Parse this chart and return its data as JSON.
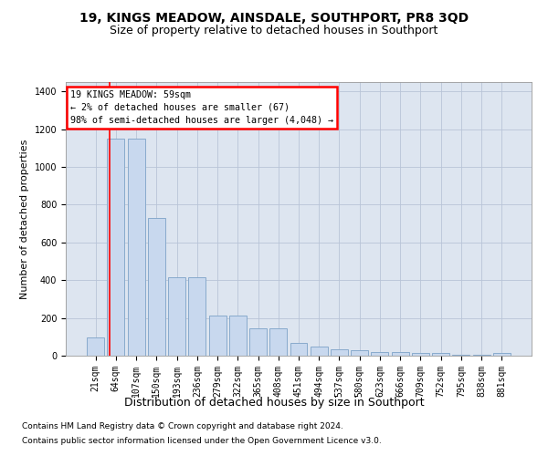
{
  "title1": "19, KINGS MEADOW, AINSDALE, SOUTHPORT, PR8 3QD",
  "title2": "Size of property relative to detached houses in Southport",
  "xlabel": "Distribution of detached houses by size in Southport",
  "ylabel": "Number of detached properties",
  "footnote1": "Contains HM Land Registry data © Crown copyright and database right 2024.",
  "footnote2": "Contains public sector information licensed under the Open Government Licence v3.0.",
  "categories": [
    "21sqm",
    "64sqm",
    "107sqm",
    "150sqm",
    "193sqm",
    "236sqm",
    "279sqm",
    "322sqm",
    "365sqm",
    "408sqm",
    "451sqm",
    "494sqm",
    "537sqm",
    "580sqm",
    "623sqm",
    "666sqm",
    "709sqm",
    "752sqm",
    "795sqm",
    "838sqm",
    "881sqm"
  ],
  "values": [
    97,
    1150,
    1150,
    730,
    415,
    415,
    215,
    215,
    145,
    145,
    70,
    50,
    35,
    30,
    20,
    17,
    15,
    14,
    5,
    5,
    14
  ],
  "bar_color": "#c8d8ee",
  "bar_edge_color": "#88aacc",
  "vline_x_index": 0.68,
  "ylim": [
    0,
    1450
  ],
  "yticks": [
    0,
    200,
    400,
    600,
    800,
    1000,
    1200,
    1400
  ],
  "background_color": "#ffffff",
  "axes_bg_color": "#dde5f0",
  "grid_color": "#b8c4d8",
  "annotation_text_line1": "19 KINGS MEADOW: 59sqm",
  "annotation_text_line2": "← 2% of detached houses are smaller (67)",
  "annotation_text_line3": "98% of semi-detached houses are larger (4,048) →",
  "title1_fontsize": 10,
  "title2_fontsize": 9,
  "ylabel_fontsize": 8,
  "xlabel_fontsize": 9,
  "tick_fontsize": 7,
  "footnote_fontsize": 6.5
}
